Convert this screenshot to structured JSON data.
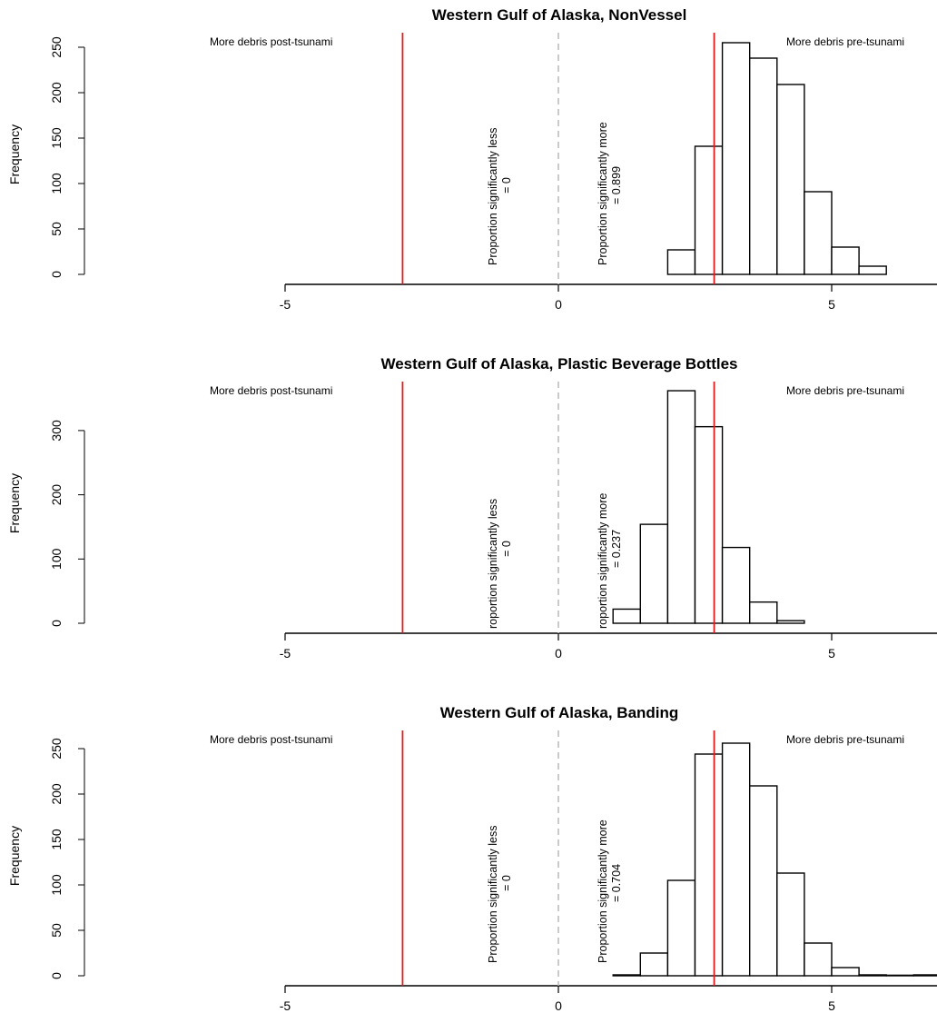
{
  "chart_data": [
    {
      "type": "bar",
      "title": "Western Gulf of Alaska, NonVessel",
      "ylabel": "Frequency",
      "xlabel": "",
      "xlim": [
        -5,
        7
      ],
      "xticks": [
        -5,
        0,
        5
      ],
      "ylim": [
        0,
        260
      ],
      "yticks": [
        0,
        50,
        100,
        150,
        200,
        250
      ],
      "bin_width": 0.5,
      "bins": [
        {
          "x0": 2.0,
          "count": 27
        },
        {
          "x0": 2.5,
          "count": 141
        },
        {
          "x0": 3.0,
          "count": 255
        },
        {
          "x0": 3.5,
          "count": 238
        },
        {
          "x0": 4.0,
          "count": 209
        },
        {
          "x0": 4.5,
          "count": 91
        },
        {
          "x0": 5.0,
          "count": 30
        },
        {
          "x0": 5.5,
          "count": 9
        }
      ],
      "red_lines": [
        -2.85,
        2.85
      ],
      "zero_line": 0,
      "left_note": "More debris post-tsunami",
      "right_note": "More debris pre-tsunami",
      "prop_less": [
        "Proportion significantly less",
        "= 0"
      ],
      "prop_more": [
        "Proportion significantly more",
        "= 0.899"
      ]
    },
    {
      "type": "bar",
      "title": "Western Gulf of Alaska, Plastic Beverage Bottles",
      "ylabel": "Frequency",
      "xlabel": "",
      "xlim": [
        -5,
        7
      ],
      "xticks": [
        -5,
        0,
        5
      ],
      "ylim": [
        0,
        370
      ],
      "yticks": [
        0,
        100,
        200,
        300
      ],
      "bin_width": 0.5,
      "bins": [
        {
          "x0": 1.0,
          "count": 22
        },
        {
          "x0": 1.5,
          "count": 154
        },
        {
          "x0": 2.0,
          "count": 362
        },
        {
          "x0": 2.5,
          "count": 306
        },
        {
          "x0": 3.0,
          "count": 118
        },
        {
          "x0": 3.5,
          "count": 33
        },
        {
          "x0": 4.0,
          "count": 4
        }
      ],
      "red_lines": [
        -2.85,
        2.85
      ],
      "zero_line": 0,
      "left_note": "More debris post-tsunami",
      "right_note": "More debris pre-tsunami",
      "prop_less": [
        "roportion significantly less",
        "= 0"
      ],
      "prop_more": [
        "roportion significantly more",
        "= 0.237"
      ]
    },
    {
      "type": "bar",
      "title": "Western Gulf of Alaska, Banding",
      "ylabel": "Frequency",
      "xlabel": "",
      "xlim": [
        -5,
        7
      ],
      "xticks": [
        -5,
        0,
        5
      ],
      "ylim": [
        0,
        260
      ],
      "yticks": [
        0,
        50,
        100,
        150,
        200,
        250
      ],
      "bin_width": 0.5,
      "bins": [
        {
          "x0": 1.0,
          "count": 1
        },
        {
          "x0": 1.5,
          "count": 25
        },
        {
          "x0": 2.0,
          "count": 105
        },
        {
          "x0": 2.5,
          "count": 244
        },
        {
          "x0": 3.0,
          "count": 256
        },
        {
          "x0": 3.5,
          "count": 209
        },
        {
          "x0": 4.0,
          "count": 113
        },
        {
          "x0": 4.5,
          "count": 36
        },
        {
          "x0": 5.0,
          "count": 9
        },
        {
          "x0": 5.5,
          "count": 1
        },
        {
          "x0": 6.0,
          "count": 0
        },
        {
          "x0": 6.5,
          "count": 1
        }
      ],
      "red_lines": [
        -2.85,
        2.85
      ],
      "zero_line": 0,
      "left_note": "More debris post-tsunami",
      "right_note": "More debris pre-tsunami",
      "prop_less": [
        "Proportion significantly less",
        "= 0"
      ],
      "prop_more": [
        "Proportion significantly more",
        "= 0.704"
      ]
    }
  ],
  "colors": {
    "red_line": "#e41a1c",
    "zero_line": "#bdbdbd",
    "bar_fill": "#ffffff",
    "bar_stroke": "#000000",
    "axis": "#000000"
  }
}
